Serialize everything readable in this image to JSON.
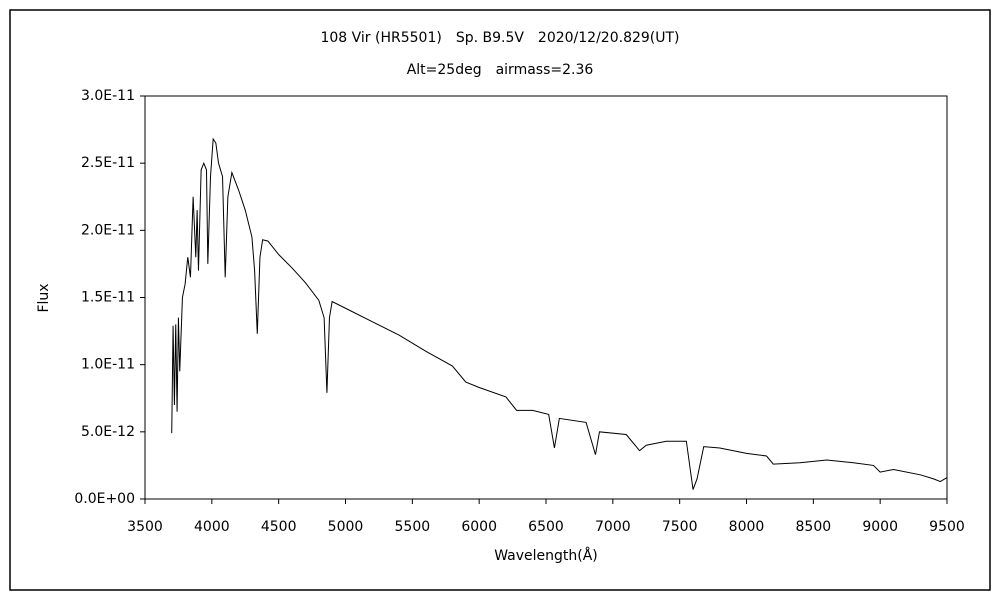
{
  "chart_data": {
    "type": "line",
    "title": "108 Vir (HR5501)　Sp. B9.5V　2020/12/20.829(UT)",
    "subtitle": "Alt=25deg　airmass=2.36",
    "x_label": "Wavelength(Å)",
    "y_label": "Flux",
    "x": [
      3700,
      3710,
      3720,
      3730,
      3740,
      3750,
      3760,
      3780,
      3800,
      3820,
      3840,
      3860,
      3880,
      3890,
      3900,
      3920,
      3940,
      3960,
      3970,
      3990,
      4010,
      4030,
      4050,
      4080,
      4100,
      4120,
      4150,
      4200,
      4250,
      4300,
      4320,
      4340,
      4360,
      4380,
      4420,
      4500,
      4600,
      4700,
      4800,
      4840,
      4861,
      4880,
      4900,
      5000,
      5200,
      5400,
      5600,
      5800,
      5900,
      6000,
      6200,
      6280,
      6400,
      6520,
      6563,
      6600,
      6800,
      6870,
      6900,
      7100,
      7200,
      7250,
      7400,
      7550,
      7600,
      7630,
      7680,
      7800,
      8000,
      8150,
      8200,
      8400,
      8600,
      8800,
      8950,
      9000,
      9100,
      9300,
      9400,
      9450,
      9500
    ],
    "series": [
      {
        "color": "#000000",
        "values": [
          4.9e-12,
          1.29e-11,
          7e-12,
          1.3e-11,
          6.5e-12,
          1.35e-11,
          9.5e-12,
          1.5e-11,
          1.6e-11,
          1.8e-11,
          1.65e-11,
          2.25e-11,
          1.8e-11,
          2.15e-11,
          1.7e-11,
          2.45e-11,
          2.5e-11,
          2.45e-11,
          1.75e-11,
          2.4e-11,
          2.68e-11,
          2.65e-11,
          2.5e-11,
          2.4e-11,
          1.65e-11,
          2.25e-11,
          2.43e-11,
          2.3e-11,
          2.15e-11,
          1.95e-11,
          1.7e-11,
          1.23e-11,
          1.8e-11,
          1.93e-11,
          1.92e-11,
          1.82e-11,
          1.72e-11,
          1.61e-11,
          1.48e-11,
          1.35e-11,
          7.9e-12,
          1.35e-11,
          1.47e-11,
          1.42e-11,
          1.32e-11,
          1.22e-11,
          1.1e-11,
          9.9e-12,
          8.7e-12,
          8.3e-12,
          7.6e-12,
          6.6e-12,
          6.6e-12,
          6.3e-12,
          3.8e-12,
          6e-12,
          5.7e-12,
          3.3e-12,
          5e-12,
          4.8e-12,
          3.6e-12,
          4e-12,
          4.3e-12,
          4.3e-12,
          7e-13,
          1.5e-12,
          3.9e-12,
          3.8e-12,
          3.4e-12,
          3.2e-12,
          2.6e-12,
          2.7e-12,
          2.9e-12,
          2.7e-12,
          2.5e-12,
          2e-12,
          2.2e-12,
          1.8e-12,
          1.5e-12,
          1.3e-12,
          1.6e-12
        ]
      }
    ],
    "xlim": [
      3500,
      9500
    ],
    "xticks": [
      3500,
      4000,
      4500,
      5000,
      5500,
      6000,
      6500,
      7000,
      7500,
      8000,
      8500,
      9000,
      9500
    ],
    "ylim": [
      0,
      3e-11
    ],
    "yticks": [
      {
        "value": 0,
        "label": "0.0E+00"
      },
      {
        "value": 5e-12,
        "label": "5.0E-12"
      },
      {
        "value": 1e-11,
        "label": "1.0E-11"
      },
      {
        "value": 1.5e-11,
        "label": "1.5E-11"
      },
      {
        "value": 2e-11,
        "label": "2.0E-11"
      },
      {
        "value": 2.5e-11,
        "label": "2.5E-11"
      },
      {
        "value": 3e-11,
        "label": "3.0E-11"
      }
    ],
    "grid": false
  }
}
